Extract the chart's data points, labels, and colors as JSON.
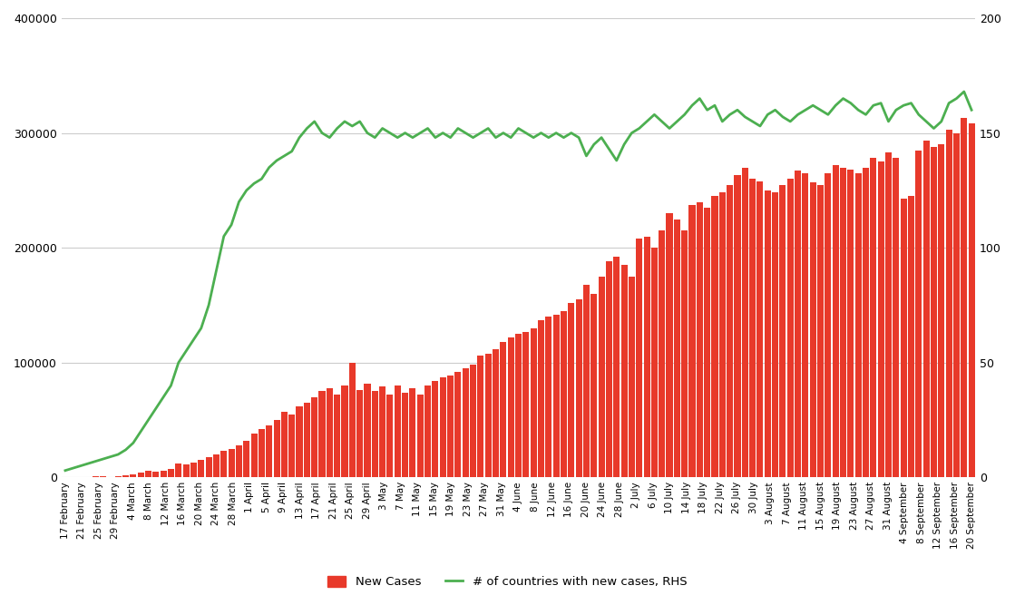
{
  "x_labels": [
    "17 February",
    "21 February",
    "25 February",
    "29 February",
    "4 March",
    "8 March",
    "12 March",
    "16 March",
    "20 March",
    "24 March",
    "28 March",
    "1 April",
    "5 April",
    "9 April",
    "13 April",
    "17 April",
    "21 April",
    "25 April",
    "29 April",
    "3 May",
    "7 May",
    "11 May",
    "15 May",
    "19 May",
    "23 May",
    "27 May",
    "31 May",
    "4 June",
    "8 June",
    "12 June",
    "16 June",
    "20 June",
    "24 June",
    "28 June",
    "2 July",
    "6 July",
    "10 July",
    "14 July",
    "18 July",
    "22 July",
    "26 July",
    "30 July",
    "3 August",
    "7 August",
    "11 August",
    "15 August",
    "19 August",
    "23 August",
    "27 August",
    "31 August",
    "4 September",
    "8 September",
    "12 September",
    "16 September",
    "20 September"
  ],
  "new_cases": [
    500,
    400,
    600,
    700,
    2500,
    4000,
    6000,
    12000,
    30000,
    42000,
    57000,
    63000,
    72000,
    78000,
    100000,
    75000,
    78000,
    72000,
    80000,
    74000,
    78000,
    72000,
    80000,
    84000,
    87000,
    89000,
    106000,
    112000,
    122000,
    127000,
    137000,
    142000,
    152000,
    168000,
    186000,
    192000,
    208000,
    230000,
    215000,
    237000,
    245000,
    263000,
    270000,
    260000,
    250000,
    267000,
    257000,
    272000,
    268000,
    278000,
    283000,
    243000,
    293000,
    303000,
    313000
  ],
  "new_cases_daily": [
    500,
    450,
    600,
    550,
    700,
    800,
    600,
    700,
    2000,
    3000,
    4000,
    5500,
    5000,
    6000,
    7000,
    12000,
    11000,
    13000,
    15000,
    18000,
    20000,
    23000,
    25000,
    28000,
    32000,
    38000,
    42000,
    45000,
    50000,
    57000,
    55000,
    62000,
    65000,
    70000,
    75000,
    78000,
    72000,
    80000,
    100000,
    76000,
    82000,
    75000,
    79000,
    72000,
    80000,
    74000,
    78000,
    72000,
    80000,
    84000,
    87000,
    89000,
    92000,
    95000,
    98000,
    106000,
    108000,
    112000,
    118000,
    122000,
    125000,
    127000,
    130000,
    137000,
    140000,
    142000,
    145000,
    152000,
    155000,
    168000,
    160000,
    175000,
    188000,
    192000,
    185000,
    175000,
    208000,
    210000,
    200000,
    215000,
    230000,
    225000,
    215000,
    237000,
    240000,
    235000,
    245000,
    248000,
    255000,
    263000,
    270000,
    260000,
    258000,
    250000,
    248000,
    255000,
    260000,
    267000,
    265000,
    257000,
    255000,
    265000,
    272000,
    270000,
    268000,
    265000,
    270000,
    278000,
    275000,
    283000,
    278000,
    243000,
    245000,
    285000,
    293000,
    288000,
    290000,
    303000,
    300000,
    313000,
    308000
  ],
  "countries_daily": [
    3,
    4,
    5,
    6,
    7,
    8,
    9,
    10,
    12,
    15,
    20,
    25,
    30,
    35,
    40,
    50,
    55,
    60,
    65,
    75,
    90,
    105,
    110,
    120,
    125,
    128,
    130,
    135,
    138,
    140,
    142,
    148,
    152,
    155,
    150,
    148,
    152,
    155,
    153,
    155,
    150,
    148,
    152,
    150,
    148,
    150,
    148,
    150,
    152,
    148,
    150,
    148,
    152,
    150,
    148,
    150,
    152,
    148,
    150,
    148,
    152,
    150,
    148,
    150,
    148,
    150,
    148,
    150,
    148,
    140,
    145,
    148,
    143,
    138,
    145,
    150,
    152,
    155,
    158,
    155,
    152,
    155,
    158,
    162,
    165,
    160,
    162,
    155,
    158,
    160,
    157,
    155,
    153,
    158,
    160,
    157,
    155,
    158,
    160,
    162,
    160,
    158,
    162,
    165,
    163,
    160,
    158,
    162,
    163,
    155,
    160,
    162,
    163,
    158,
    155,
    152,
    155,
    163,
    165,
    168,
    160
  ],
  "bar_color": "#e8392a",
  "line_color": "#4caf50",
  "background_color": "#ffffff",
  "grid_color": "#cccccc",
  "ylim_left": [
    0,
    400000
  ],
  "ylim_right": [
    0,
    200
  ],
  "yticks_left": [
    0,
    100000,
    200000,
    300000,
    400000
  ],
  "yticks_right": [
    0,
    50,
    100,
    150,
    200
  ],
  "legend_labels": [
    "New Cases",
    "# of countries with new cases, RHS"
  ],
  "legend_bar_color": "#e8392a",
  "legend_line_color": "#4caf50"
}
